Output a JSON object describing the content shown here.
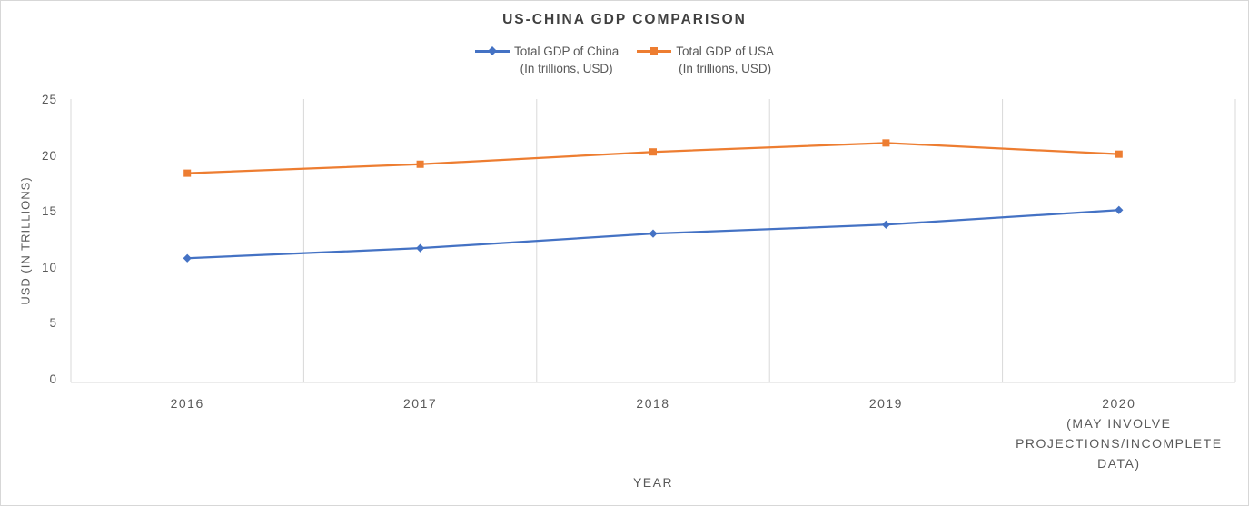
{
  "window": {
    "background": "#ffffff",
    "border_color": "#d7d7d7"
  },
  "chart_data": {
    "type": "line",
    "title": "US-CHINA GDP COMPARISON",
    "xlabel": "YEAR",
    "ylabel": "USD (IN TRILLIONS)",
    "ylim": [
      0,
      25
    ],
    "y_ticks": [
      0,
      5,
      10,
      15,
      20,
      25
    ],
    "grid": "vertical-only",
    "legend_position": "top-center",
    "categories": [
      "2016",
      "2017",
      "2018",
      "2019",
      "2020"
    ],
    "x_tick_labels": [
      [
        "2016"
      ],
      [
        "2017"
      ],
      [
        "2018"
      ],
      [
        "2019"
      ],
      [
        "2020",
        "(MAY INVOLVE",
        "PROJECTIONS/INCOMPLETE",
        "DATA)"
      ]
    ],
    "series": [
      {
        "name": "Total GDP of China",
        "subtitle": "(In trillions, USD)",
        "color": "#4472C4",
        "marker": "diamond",
        "values": [
          11.1,
          12.0,
          13.3,
          14.1,
          15.4
        ]
      },
      {
        "name": "Total GDP of USA",
        "subtitle": "(In trillions, USD)",
        "color": "#ED7D31",
        "marker": "square",
        "values": [
          18.7,
          19.5,
          20.6,
          21.4,
          20.4
        ]
      }
    ],
    "colors": {
      "grid": "#d9d9d9",
      "axis": "#d9d9d9",
      "tick_text": "#595959",
      "title_text": "#404040"
    }
  }
}
